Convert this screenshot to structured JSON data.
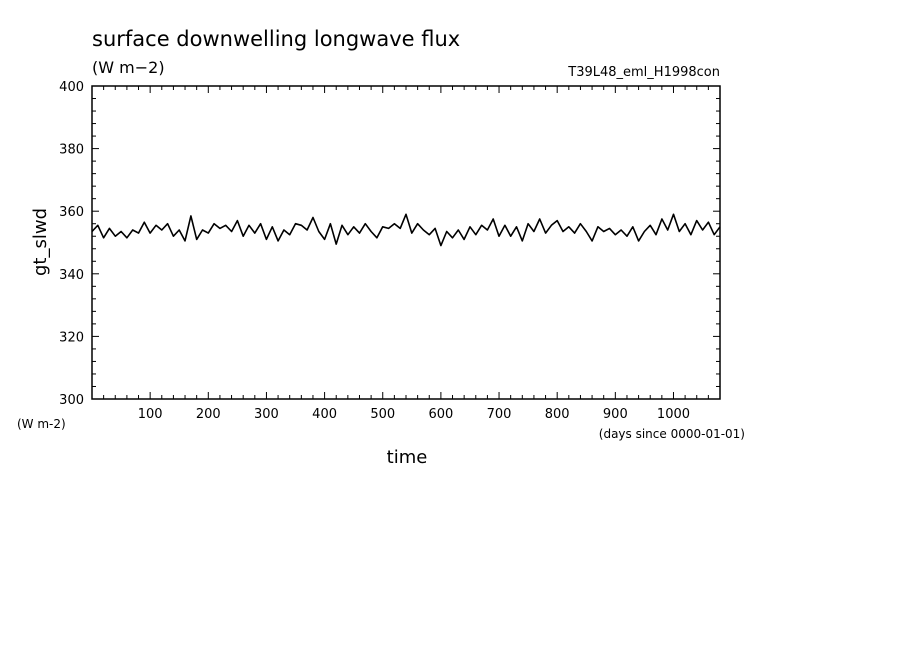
{
  "chart_data": {
    "type": "line",
    "title": "surface downwelling longwave flux",
    "units_label": "(W m−2)",
    "experiment": "T39L48_eml_H1998con",
    "xlabel": "time",
    "x_units": "(days since 0000-01-01)",
    "ylabel": "gt_slwd",
    "y_units": "(W m-2)",
    "xlim": [
      0,
      1080
    ],
    "ylim": [
      300,
      400
    ],
    "x_ticks": [
      100,
      200,
      300,
      400,
      500,
      600,
      700,
      800,
      900,
      1000
    ],
    "y_ticks": [
      300,
      320,
      340,
      360,
      380,
      400
    ],
    "grid": false,
    "series": [
      {
        "x": [
          0,
          10,
          20,
          30,
          40,
          50,
          60,
          70,
          80,
          90,
          100,
          110,
          120,
          130,
          140,
          150,
          160,
          170,
          180,
          190,
          200,
          210,
          220,
          230,
          240,
          250,
          260,
          270,
          280,
          290,
          300,
          310,
          320,
          330,
          340,
          350,
          360,
          370,
          380,
          390,
          400,
          410,
          420,
          430,
          440,
          450,
          460,
          470,
          480,
          490,
          500,
          510,
          520,
          530,
          540,
          550,
          560,
          570,
          580,
          590,
          600,
          610,
          620,
          630,
          640,
          650,
          660,
          670,
          680,
          690,
          700,
          710,
          720,
          730,
          740,
          750,
          760,
          770,
          780,
          790,
          800,
          810,
          820,
          830,
          840,
          850,
          860,
          870,
          880,
          890,
          900,
          910,
          920,
          930,
          940,
          950,
          960,
          970,
          980,
          990,
          1000,
          1010,
          1020,
          1030,
          1040,
          1050,
          1060,
          1070,
          1080
        ],
        "values": [
          353.5,
          355.5,
          351.5,
          354.5,
          352,
          353.5,
          351.5,
          354,
          353,
          356.5,
          353,
          355.5,
          354,
          356,
          352,
          354,
          350.5,
          358.5,
          351,
          354,
          353,
          356,
          354.5,
          355.5,
          353.5,
          357,
          352,
          355.5,
          353,
          356,
          351,
          355,
          350.5,
          354,
          352.5,
          356,
          355.5,
          354,
          358,
          353.5,
          351,
          356,
          349.5,
          355.5,
          352.5,
          355,
          353,
          356,
          353.5,
          351.5,
          355,
          354.5,
          356,
          354.5,
          359,
          353,
          356,
          354,
          352.5,
          354.5,
          349,
          353.5,
          351.5,
          354,
          351,
          355,
          352.5,
          355.5,
          354,
          357.5,
          352,
          355.5,
          352,
          355,
          350.5,
          356,
          353.5,
          357.5,
          353,
          355.5,
          357,
          353.5,
          355,
          353,
          356,
          353.5,
          350.5,
          355,
          353.5,
          354.5,
          352.5,
          354,
          352,
          355,
          350.5,
          353.5,
          355.5,
          352.5,
          357.5,
          354,
          359,
          353.5,
          356,
          352.5,
          357,
          354,
          356.5,
          352.5,
          355
        ]
      }
    ]
  }
}
